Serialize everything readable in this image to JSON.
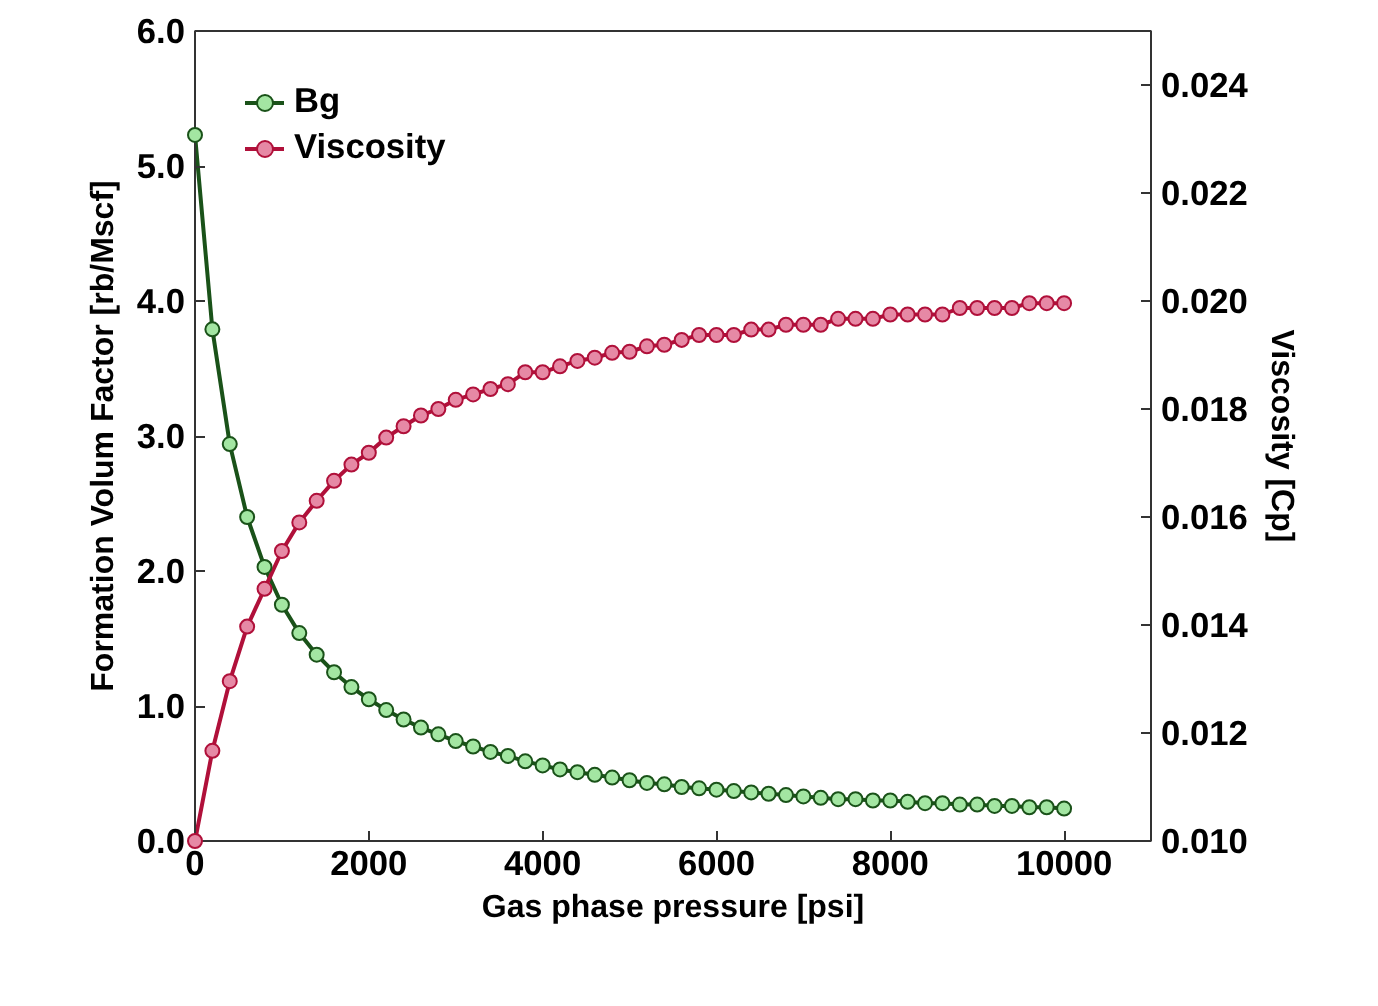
{
  "chart_data": {
    "type": "line",
    "xlabel": "Gas phase pressure [psi]",
    "ylabel": "Formation Volum Factor [rb/Mscf]",
    "y2label": "Viscosity [Cp]",
    "x": [
      0,
      200,
      400,
      600,
      800,
      1000,
      1200,
      1400,
      1600,
      1800,
      2000,
      2200,
      2400,
      2600,
      2800,
      3000,
      3200,
      3400,
      3600,
      3800,
      4000,
      4200,
      4400,
      4600,
      4800,
      5000,
      5200,
      5400,
      5600,
      5800,
      6000,
      6200,
      6400,
      6600,
      6800,
      7000,
      7200,
      7400,
      7600,
      7800,
      8000,
      8200,
      8400,
      8600,
      8800,
      9000,
      9200,
      9400,
      9600,
      9800,
      10000
    ],
    "series": [
      {
        "name": "Bg",
        "color": "#1a5219",
        "values": [
          5.23,
          3.79,
          2.94,
          2.4,
          2.03,
          1.75,
          1.54,
          1.38,
          1.25,
          1.14,
          1.05,
          0.97,
          0.9,
          0.84,
          0.79,
          0.74,
          0.7,
          0.66,
          0.63,
          0.59,
          0.56,
          0.53,
          0.51,
          0.49,
          0.47,
          0.45,
          0.43,
          0.42,
          0.4,
          0.39,
          0.38,
          0.37,
          0.36,
          0.35,
          0.34,
          0.33,
          0.32,
          0.31,
          0.31,
          0.3,
          0.3,
          0.29,
          0.28,
          0.28,
          0.27,
          0.27,
          0.26,
          0.26,
          0.25,
          0.25,
          0.24
        ]
      },
      {
        "name": "Viscosity",
        "color": "#b0103a",
        "axis": "y2",
        "values": [
          0.01,
          0.01167,
          0.01296,
          0.01397,
          0.01467,
          0.01537,
          0.0159,
          0.0163,
          0.01667,
          0.01697,
          0.01719,
          0.01747,
          0.01768,
          0.01788,
          0.018,
          0.01817,
          0.01827,
          0.01837,
          0.01846,
          0.01868,
          0.01868,
          0.01879,
          0.01889,
          0.01895,
          0.01904,
          0.01906,
          0.01916,
          0.01919,
          0.01928,
          0.01937,
          0.01937,
          0.01937,
          0.01947,
          0.01947,
          0.01956,
          0.01956,
          0.01956,
          0.01967,
          0.01967,
          0.01967,
          0.01975,
          0.01975,
          0.01975,
          0.01975,
          0.01987,
          0.01987,
          0.01987,
          0.01987,
          0.01996,
          0.01996,
          0.01996
        ]
      }
    ],
    "xlim": [
      0,
      11000
    ],
    "xticks": [
      0,
      2000,
      4000,
      6000,
      8000,
      10000
    ],
    "ylim": [
      0,
      6
    ],
    "yticks": [
      {
        "value": 0,
        "label": "0.0"
      },
      {
        "value": 1,
        "label": "1.0"
      },
      {
        "value": 2,
        "label": "2.0"
      },
      {
        "value": 3,
        "label": "3.0"
      },
      {
        "value": 4,
        "label": "4.0"
      },
      {
        "value": 5,
        "label": "5.0"
      },
      {
        "value": 6,
        "label": "6.0"
      }
    ],
    "y2lim": [
      0.01,
      0.025
    ],
    "y2ticks": [
      {
        "value": 0.01,
        "label": "0.010"
      },
      {
        "value": 0.012,
        "label": "0.012"
      },
      {
        "value": 0.014,
        "label": "0.014"
      },
      {
        "value": 0.016,
        "label": "0.016"
      },
      {
        "value": 0.018,
        "label": "0.018"
      },
      {
        "value": 0.02,
        "label": "0.020"
      },
      {
        "value": 0.022,
        "label": "0.022"
      },
      {
        "value": 0.024,
        "label": "0.024"
      }
    ],
    "grid": false,
    "legend": "top left",
    "marker": "circle",
    "line_style": "solid"
  }
}
